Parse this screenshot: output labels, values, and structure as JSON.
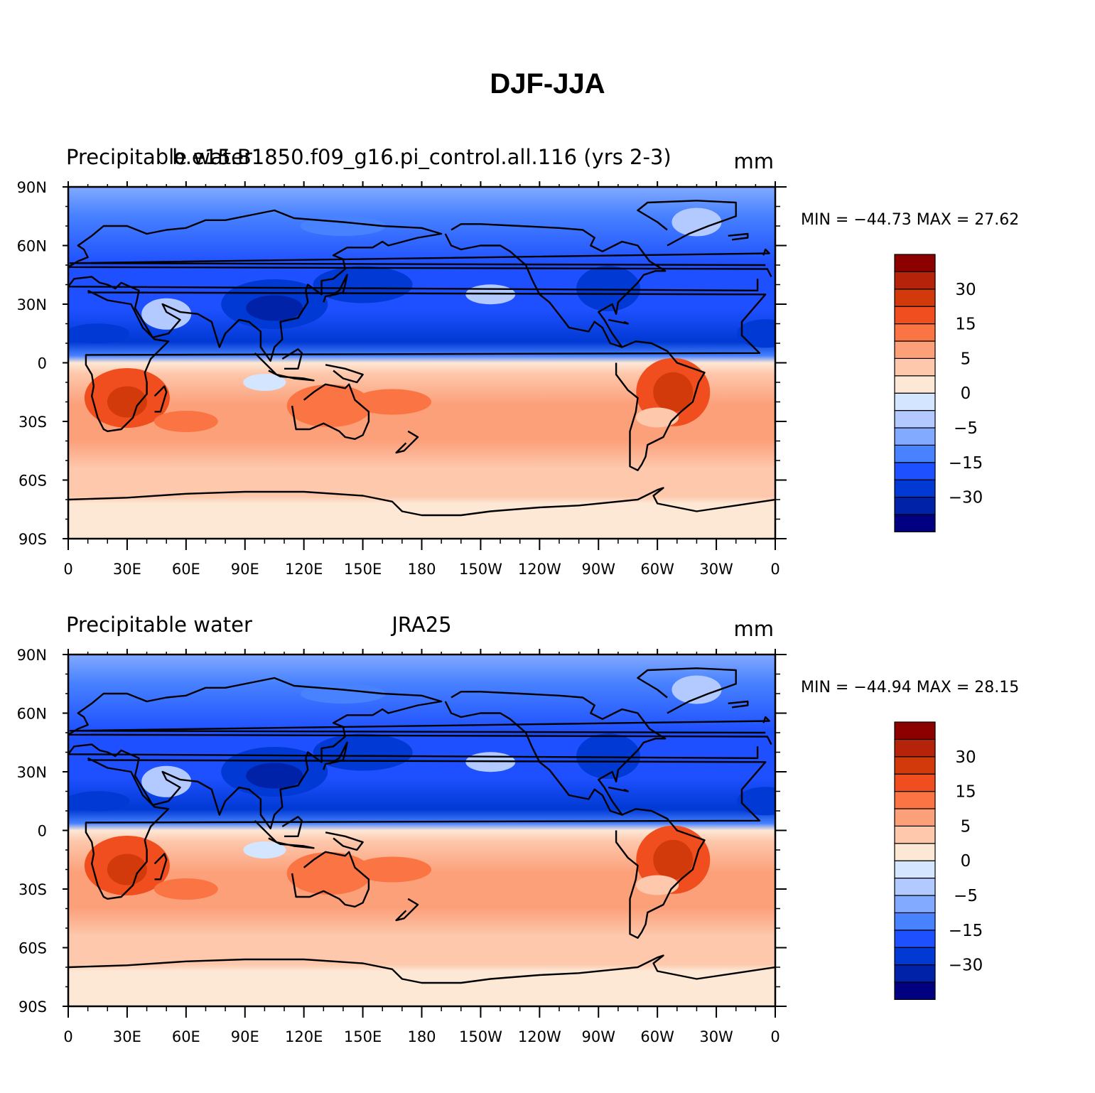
{
  "title": "DJF-JJA",
  "panels": [
    {
      "left_label": "Precipitable water",
      "center_label": "b.e15.B1850.f09_g16.pi_control.all.116 (yrs 2-3)",
      "right_label": "mm",
      "stats": "MIN = −44.73  MAX =   27.62"
    },
    {
      "left_label": "Precipitable water",
      "center_label": "JRA25",
      "right_label": "mm",
      "stats": "MIN = −44.94  MAX =   28.15"
    }
  ],
  "lat_labels": [
    "90N",
    "60N",
    "30N",
    "0",
    "30S",
    "60S",
    "90S"
  ],
  "lon_labels": [
    "0",
    "30E",
    "60E",
    "90E",
    "120E",
    "150E",
    "180",
    "150W",
    "120W",
    "90W",
    "60W",
    "30W",
    "0"
  ],
  "colorbar": {
    "colors": [
      "#000080",
      "#0022a8",
      "#0039d3",
      "#1e50ff",
      "#4882ff",
      "#82aaff",
      "#b2caff",
      "#d4e6ff",
      "#fde8d6",
      "#fdc8ac",
      "#fca07a",
      "#fb7444",
      "#f04e1e",
      "#d23a0c",
      "#b4230a",
      "#8c0000"
    ],
    "labels": [
      "−30",
      "−15",
      "−5",
      "0",
      "5",
      "15",
      "30"
    ]
  },
  "chart_data": {
    "type": "heatmap",
    "variable": "Precipitable water",
    "units": "mm",
    "contour_levels": [
      -40,
      -35,
      -30,
      -25,
      -20,
      -15,
      -10,
      -5,
      -2,
      0,
      2,
      5,
      10,
      15,
      20,
      25,
      30,
      35
    ],
    "colorbar_labels": [
      -30,
      -15,
      -5,
      0,
      5,
      15,
      30
    ],
    "maps": [
      {
        "label": "b.e15.B1850.f09_g16.pi_control.all.116 (yrs 2-3)",
        "min": -44.73,
        "max": 27.62
      },
      {
        "label": "JRA25",
        "min": -44.94,
        "max": 28.15
      }
    ],
    "lat_range": [
      -90,
      90
    ],
    "lon_range": [
      0,
      360
    ]
  }
}
